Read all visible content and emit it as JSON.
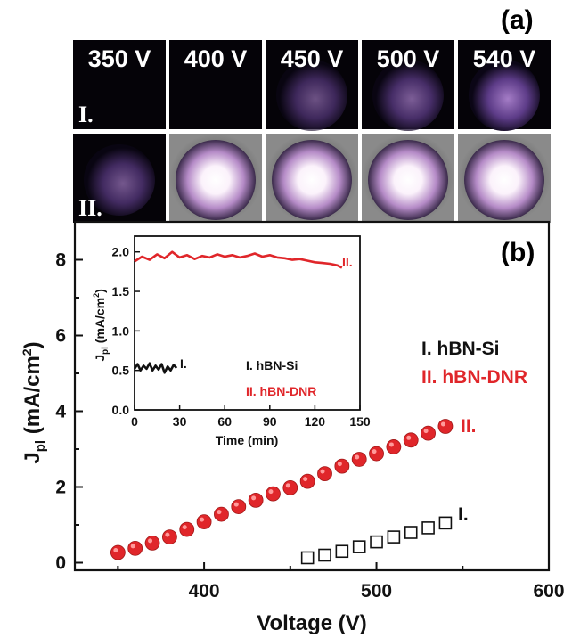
{
  "panel_a": {
    "label": "(a)",
    "voltages": [
      "350 V",
      "400 V",
      "450 V",
      "500 V",
      "540 V"
    ],
    "rows": [
      {
        "label": "I.",
        "intensity": [
          0.0,
          0.0,
          0.3,
          0.4,
          0.75
        ]
      },
      {
        "label": "II.",
        "intensity": [
          0.35,
          0.9,
          0.95,
          1.0,
          1.0
        ]
      }
    ]
  },
  "panel_b": {
    "label": "(b)"
  },
  "colors": {
    "series1": "#111111",
    "series2": "#e0262a",
    "accent": "#e0262a"
  },
  "chart_data": [
    {
      "type": "scatter",
      "xlabel": "Voltage (V)",
      "ylabel_main": "J",
      "ylabel_sub": "pl",
      "ylabel_rest": " (mA/cm",
      "ylabel_sup": "2",
      "ylabel_end": ")",
      "xlim": [
        325,
        600
      ],
      "ylim": [
        -0.2,
        9.0
      ],
      "xticks": [
        400,
        500,
        600
      ],
      "yticks": [
        0,
        2,
        4,
        6,
        8
      ],
      "legend": [
        "I. hBN-Si",
        "II. hBN-DNR"
      ],
      "series": [
        {
          "name": "I. hBN-Si",
          "marker": "open-square",
          "end_label": "I.",
          "x": [
            460,
            470,
            480,
            490,
            500,
            510,
            520,
            530,
            540
          ],
          "y": [
            0.13,
            0.2,
            0.3,
            0.42,
            0.55,
            0.68,
            0.8,
            0.92,
            1.05
          ]
        },
        {
          "name": "II. hBN-DNR",
          "marker": "filled-circle",
          "end_label": "II.",
          "x": [
            350,
            360,
            370,
            380,
            390,
            400,
            410,
            420,
            430,
            440,
            450,
            460,
            470,
            480,
            490,
            500,
            510,
            520,
            530,
            540
          ],
          "y": [
            0.27,
            0.38,
            0.52,
            0.68,
            0.88,
            1.08,
            1.28,
            1.48,
            1.65,
            1.82,
            1.98,
            2.15,
            2.35,
            2.55,
            2.73,
            2.88,
            3.06,
            3.24,
            3.42,
            3.6
          ]
        }
      ]
    },
    {
      "type": "line",
      "title": "inset",
      "xlabel": "Time (min)",
      "ylabel_main": "J",
      "ylabel_sub": "pl",
      "ylabel_rest": " (mA/cm",
      "ylabel_sup": "2",
      "ylabel_end": ")",
      "xlim": [
        0,
        150
      ],
      "ylim": [
        0.0,
        2.2
      ],
      "xticks": [
        0,
        30,
        60,
        90,
        120,
        150
      ],
      "yticks": [
        "0.0",
        "0.5",
        "1.0",
        "1.5",
        "2.0"
      ],
      "legend": [
        "I. hBN-Si",
        "II. hBN-DNR"
      ],
      "series": [
        {
          "name": "I. hBN-Si",
          "end_label": "I.",
          "x": [
            0,
            2,
            4,
            6,
            8,
            10,
            12,
            14,
            16,
            18,
            20,
            22,
            24,
            26,
            28
          ],
          "y": [
            0.52,
            0.58,
            0.5,
            0.56,
            0.52,
            0.59,
            0.5,
            0.56,
            0.51,
            0.58,
            0.47,
            0.55,
            0.5,
            0.57,
            0.53
          ]
        },
        {
          "name": "II. hBN-DNR",
          "end_label": "II.",
          "x": [
            0,
            5,
            10,
            15,
            20,
            25,
            30,
            35,
            40,
            45,
            50,
            55,
            60,
            65,
            70,
            75,
            80,
            85,
            90,
            95,
            100,
            105,
            110,
            115,
            120,
            125,
            130,
            135,
            138
          ],
          "y": [
            1.88,
            1.94,
            1.9,
            1.97,
            1.92,
            2.0,
            1.93,
            1.96,
            1.91,
            1.95,
            1.93,
            1.97,
            1.94,
            1.96,
            1.93,
            1.95,
            1.98,
            1.94,
            1.96,
            1.93,
            1.92,
            1.9,
            1.91,
            1.89,
            1.87,
            1.86,
            1.85,
            1.83,
            1.8
          ]
        }
      ]
    }
  ]
}
